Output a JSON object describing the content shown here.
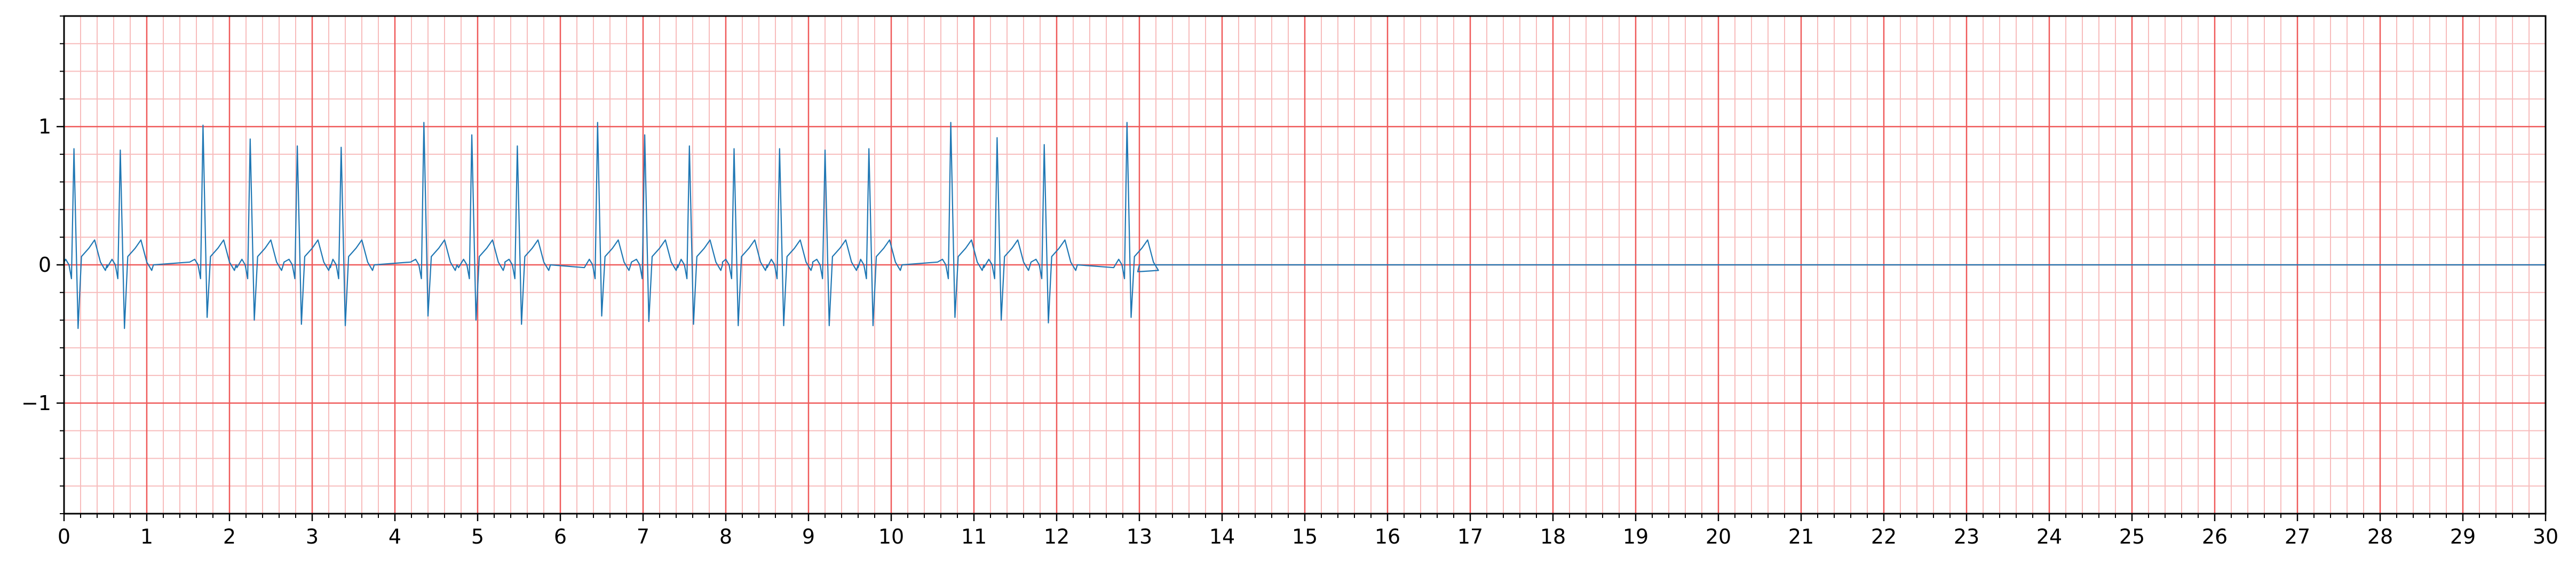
{
  "chart_data": {
    "type": "line",
    "title": "",
    "xlabel": "",
    "ylabel": "",
    "xlim": [
      0,
      30
    ],
    "ylim": [
      -1.8,
      1.8
    ],
    "x_ticks": [
      "0",
      "1",
      "2",
      "3",
      "4",
      "5",
      "6",
      "7",
      "8",
      "9",
      "10",
      "11",
      "12",
      "13",
      "14",
      "15",
      "16",
      "17",
      "18",
      "19",
      "20",
      "21",
      "22",
      "23",
      "24",
      "25",
      "26",
      "27",
      "28",
      "29",
      "30"
    ],
    "y_ticks": [
      {
        "value": 1,
        "label": "1"
      },
      {
        "value": 0,
        "label": "0"
      },
      {
        "value": -1,
        "label": "−1"
      }
    ],
    "grid": {
      "major_x_step": 1,
      "major_y_step": 1,
      "minor_x_step": 0.2,
      "minor_y_step": 0.2,
      "major_color": "#ef5a5a",
      "minor_color": "#f7bcbc"
    },
    "series": [
      {
        "color": "#1f77b4",
        "baseline": 0,
        "signal_end": 13.0,
        "line_end": 30,
        "beats": [
          {
            "t": 0.12,
            "r": 0.84,
            "s": -0.46
          },
          {
            "t": 0.68,
            "r": 0.83,
            "s": -0.46
          },
          {
            "t": 1.68,
            "r": 1.01,
            "s": -0.38
          },
          {
            "t": 2.25,
            "r": 0.91,
            "s": -0.4
          },
          {
            "t": 2.82,
            "r": 0.86,
            "s": -0.43
          },
          {
            "t": 3.35,
            "r": 0.85,
            "s": -0.44
          },
          {
            "t": 4.35,
            "r": 1.03,
            "s": -0.37
          },
          {
            "t": 4.93,
            "r": 0.94,
            "s": -0.4
          },
          {
            "t": 5.48,
            "r": 0.86,
            "s": -0.43
          },
          {
            "t": 6.45,
            "r": 1.03,
            "s": -0.37
          },
          {
            "t": 7.02,
            "r": 0.94,
            "s": -0.41
          },
          {
            "t": 7.56,
            "r": 0.86,
            "s": -0.43
          },
          {
            "t": 8.1,
            "r": 0.84,
            "s": -0.44
          },
          {
            "t": 8.65,
            "r": 0.84,
            "s": -0.44
          },
          {
            "t": 9.2,
            "r": 0.83,
            "s": -0.44
          },
          {
            "t": 9.73,
            "r": 0.84,
            "s": -0.44
          },
          {
            "t": 10.72,
            "r": 1.03,
            "s": -0.38
          },
          {
            "t": 11.28,
            "r": 0.92,
            "s": -0.4
          },
          {
            "t": 11.85,
            "r": 0.87,
            "s": -0.42
          },
          {
            "t": 12.85,
            "r": 1.03,
            "s": -0.38
          }
        ]
      }
    ]
  }
}
